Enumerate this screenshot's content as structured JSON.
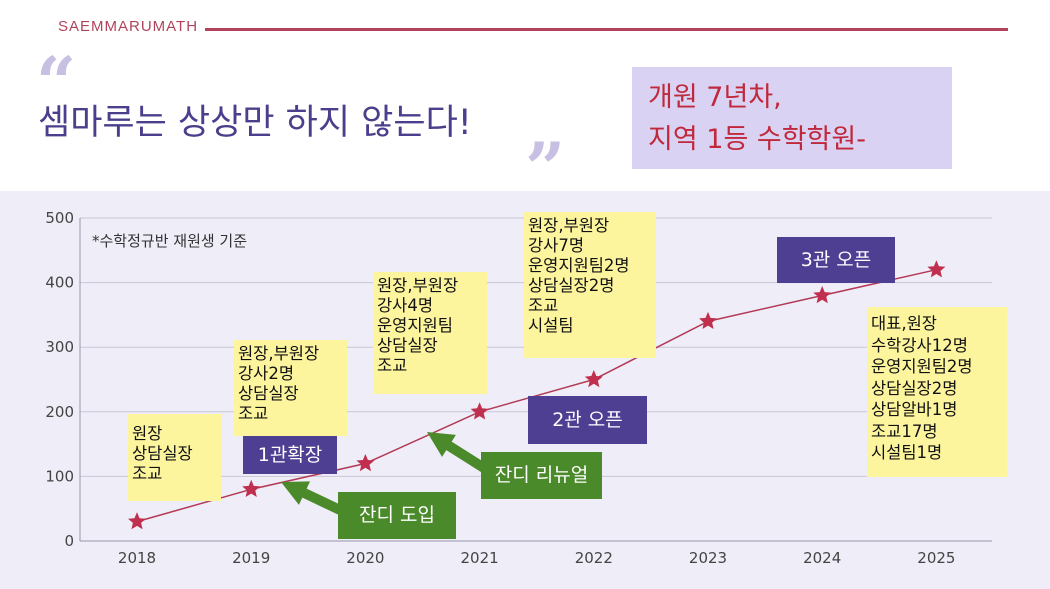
{
  "header": {
    "brand": "SAEMMARUMATH",
    "headline": "셈마루는 상상만 하지 않는다!",
    "callout_line1": "개원 7년차,",
    "callout_line2": "지역 1등 수학학원-"
  },
  "colors": {
    "brand": "#b0435c",
    "headline": "#4a3f8c",
    "callout_bg": "#d9d2f2",
    "callout_text": "#c0283c",
    "line": "#b33a55",
    "marker": "#c0304e",
    "sticky": "#fcf59e",
    "tag_purple": "#4f3f93",
    "tag_green": "#4b8a2a"
  },
  "chart_data": {
    "type": "line",
    "x": [
      "2018",
      "2019",
      "2020",
      "2021",
      "2022",
      "2023",
      "2024",
      "2025"
    ],
    "series": [
      {
        "values": [
          30,
          80,
          120,
          200,
          250,
          340,
          380,
          420
        ]
      }
    ],
    "ylim": [
      0,
      500
    ],
    "yticks": [
      0,
      100,
      200,
      300,
      400,
      500
    ],
    "grid": true,
    "marker": "star",
    "note": "*수학정규반 재원생 기준",
    "staff_notes": [
      {
        "year": "2018",
        "lines": [
          "원장",
          "상담실장",
          "조교"
        ]
      },
      {
        "year": "2019",
        "lines": [
          "원장,부원장",
          "강사2명",
          "상담실장",
          "조교"
        ]
      },
      {
        "year": "2020",
        "lines": [
          "원장,부원장",
          "강사4명",
          "운영지원팀",
          "상담실장",
          "조교"
        ]
      },
      {
        "year": "2022",
        "lines": [
          "원장,부원장",
          "강사7명",
          "운영지원팀2명",
          "상담실장2명",
          "조교",
          "시설팀"
        ]
      },
      {
        "year": "2025",
        "lines": [
          "대표,원장",
          "수학강사12명",
          "운영지원팀2명",
          "상담실장2명",
          "상담알바1명",
          "조교17명",
          "시설팀1명"
        ]
      }
    ],
    "events": [
      {
        "label": "1관확장",
        "style": "purple"
      },
      {
        "label": "2관 오픈",
        "style": "purple"
      },
      {
        "label": "3관 오픈",
        "style": "purple"
      },
      {
        "label": "잔디 도입",
        "style": "green"
      },
      {
        "label": "잔디 리뉴얼",
        "style": "green"
      }
    ]
  }
}
